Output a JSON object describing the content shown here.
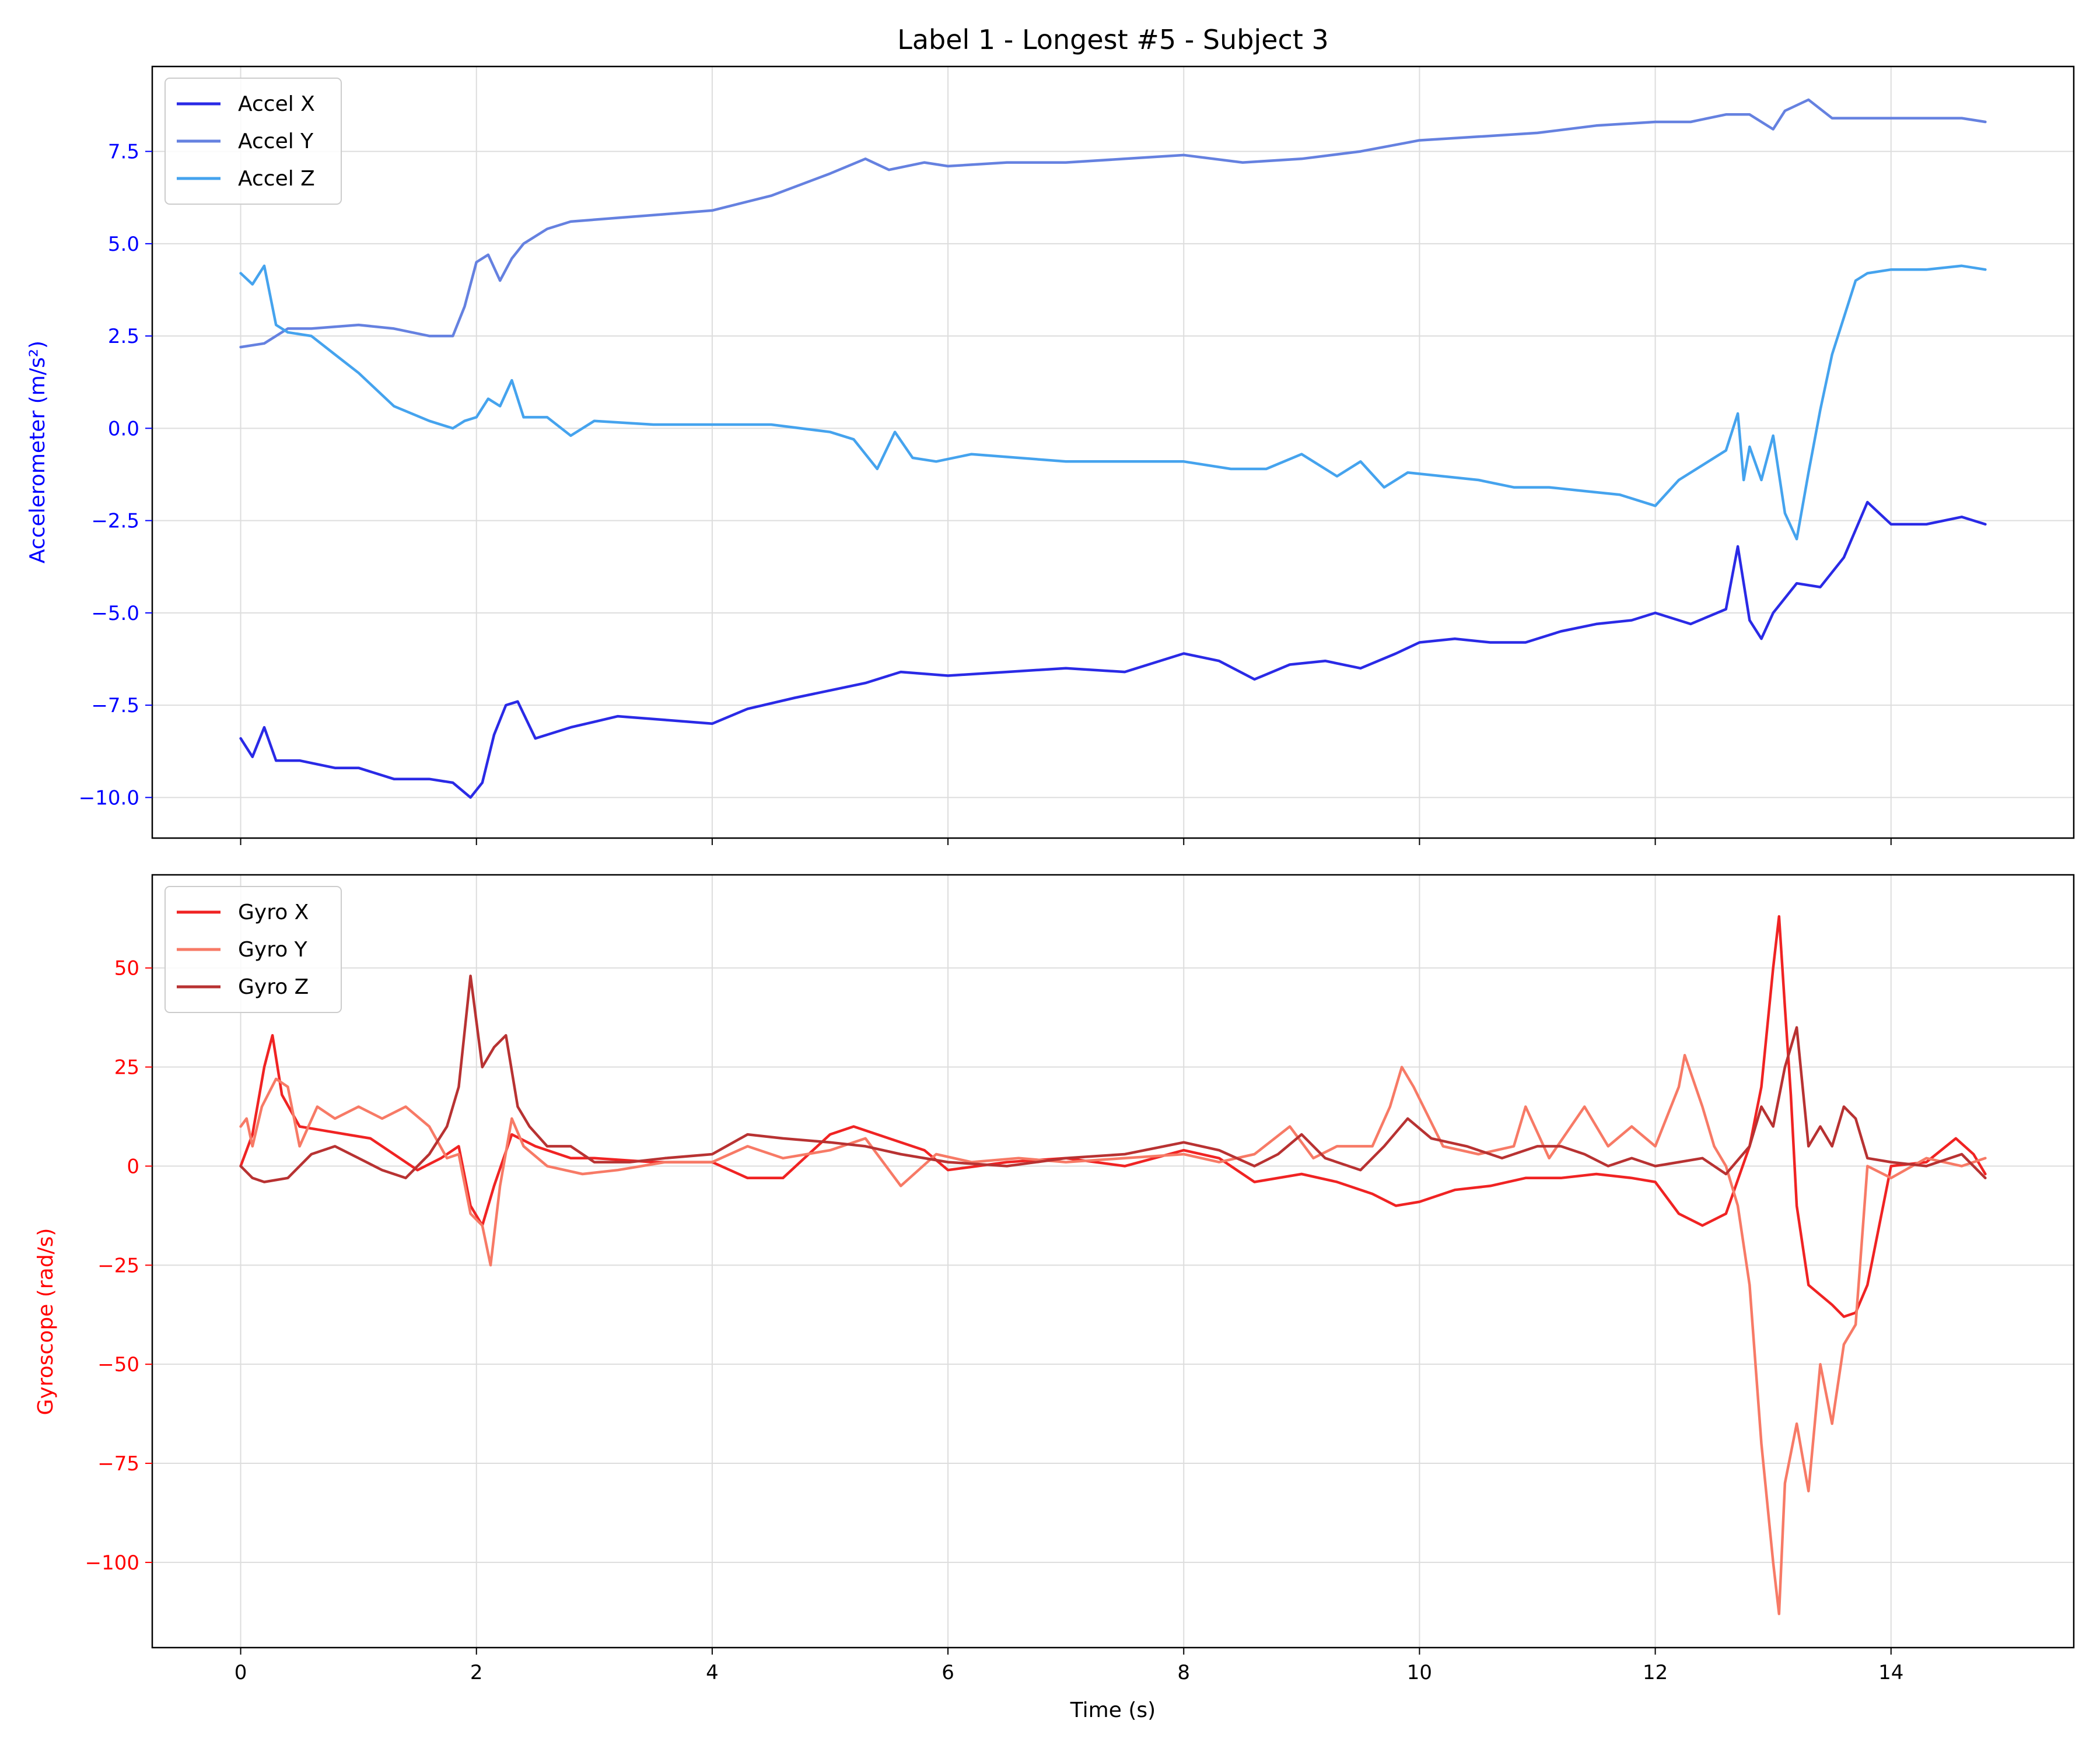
{
  "figure": {
    "title": "Label 1 - Longest #5 - Subject 3"
  },
  "colors": {
    "accel_x": "#2a2ae6",
    "accel_y": "#6581e0",
    "accel_z": "#45a3ee",
    "gyro_x": "#f02323",
    "gyro_y": "#f77a66",
    "gyro_z": "#b83232",
    "accel_axis_text": "#0000ff",
    "gyro_axis_text": "#ff0000",
    "grid": "#dddddd"
  },
  "chart_data": [
    {
      "type": "line",
      "title": "Label 1 - Longest #5 - Subject 3",
      "ylabel": "Accelerometer (m/s²)",
      "xlabel": "",
      "xlim": [
        -0.75,
        15.55
      ],
      "ylim": [
        -11.1,
        9.8
      ],
      "grid": true,
      "legend_position": "top-left",
      "xticks": [
        0,
        2,
        4,
        6,
        8,
        10,
        12,
        14
      ],
      "yticks": [
        -10.0,
        -7.5,
        -5.0,
        -2.5,
        0.0,
        2.5,
        5.0,
        7.5
      ],
      "ytick_labels": [
        "−10.0",
        "−7.5",
        "−5.0",
        "−2.5",
        "0.0",
        "2.5",
        "5.0",
        "7.5"
      ],
      "series": [
        {
          "name": "Accel X",
          "x": [
            0,
            0.1,
            0.2,
            0.3,
            0.5,
            0.8,
            1.0,
            1.3,
            1.6,
            1.8,
            1.95,
            2.05,
            2.15,
            2.25,
            2.35,
            2.5,
            2.8,
            3.2,
            3.6,
            4.0,
            4.3,
            4.7,
            5.0,
            5.3,
            5.6,
            6.0,
            6.5,
            7.0,
            7.5,
            8.0,
            8.3,
            8.6,
            8.9,
            9.2,
            9.5,
            9.8,
            10.0,
            10.3,
            10.6,
            10.9,
            11.2,
            11.5,
            11.8,
            12.0,
            12.3,
            12.6,
            12.7,
            12.8,
            12.9,
            13.0,
            13.2,
            13.4,
            13.6,
            13.8,
            14.0,
            14.3,
            14.6,
            14.8
          ],
          "values": [
            -8.4,
            -8.9,
            -8.1,
            -9.0,
            -9.0,
            -9.2,
            -9.2,
            -9.5,
            -9.5,
            -9.6,
            -10.0,
            -9.6,
            -8.3,
            -7.5,
            -7.4,
            -8.4,
            -8.1,
            -7.8,
            -7.9,
            -8.0,
            -7.6,
            -7.3,
            -7.1,
            -6.9,
            -6.6,
            -6.7,
            -6.6,
            -6.5,
            -6.6,
            -6.1,
            -6.3,
            -6.8,
            -6.4,
            -6.3,
            -6.5,
            -6.1,
            -5.8,
            -5.7,
            -5.8,
            -5.8,
            -5.5,
            -5.3,
            -5.2,
            -5.0,
            -5.3,
            -4.9,
            -3.2,
            -5.2,
            -5.7,
            -5.0,
            -4.2,
            -4.3,
            -3.5,
            -2.0,
            -2.6,
            -2.6,
            -2.4,
            -2.6
          ]
        },
        {
          "name": "Accel Y",
          "x": [
            0,
            0.2,
            0.4,
            0.6,
            1.0,
            1.3,
            1.6,
            1.8,
            1.9,
            2.0,
            2.1,
            2.2,
            2.3,
            2.4,
            2.6,
            2.8,
            3.2,
            3.6,
            4.0,
            4.5,
            5.0,
            5.3,
            5.5,
            5.8,
            6.0,
            6.5,
            7.0,
            7.5,
            8.0,
            8.5,
            9.0,
            9.5,
            10.0,
            10.5,
            11.0,
            11.5,
            12.0,
            12.3,
            12.6,
            12.8,
            13.0,
            13.1,
            13.3,
            13.5,
            13.8,
            14.0,
            14.3,
            14.6,
            14.8
          ],
          "values": [
            2.2,
            2.3,
            2.7,
            2.7,
            2.8,
            2.7,
            2.5,
            2.5,
            3.3,
            4.5,
            4.7,
            4.0,
            4.6,
            5.0,
            5.4,
            5.6,
            5.7,
            5.8,
            5.9,
            6.3,
            6.9,
            7.3,
            7.0,
            7.2,
            7.1,
            7.2,
            7.2,
            7.3,
            7.4,
            7.2,
            7.3,
            7.5,
            7.8,
            7.9,
            8.0,
            8.2,
            8.3,
            8.3,
            8.5,
            8.5,
            8.1,
            8.6,
            8.9,
            8.4,
            8.4,
            8.4,
            8.4,
            8.4,
            8.3
          ]
        },
        {
          "name": "Accel Z",
          "x": [
            0,
            0.1,
            0.2,
            0.3,
            0.4,
            0.6,
            0.8,
            1.0,
            1.3,
            1.6,
            1.8,
            1.9,
            2.0,
            2.1,
            2.2,
            2.3,
            2.4,
            2.6,
            2.8,
            3.0,
            3.5,
            4.0,
            4.5,
            5.0,
            5.2,
            5.4,
            5.55,
            5.7,
            5.9,
            6.2,
            6.6,
            7.0,
            7.5,
            8.0,
            8.4,
            8.7,
            9.0,
            9.3,
            9.5,
            9.7,
            9.9,
            10.2,
            10.5,
            10.8,
            11.1,
            11.4,
            11.7,
            12.0,
            12.2,
            12.4,
            12.6,
            12.7,
            12.75,
            12.8,
            12.9,
            13.0,
            13.1,
            13.2,
            13.3,
            13.4,
            13.5,
            13.6,
            13.7,
            13.8,
            14.0,
            14.3,
            14.6,
            14.8
          ],
          "values": [
            4.2,
            3.9,
            4.4,
            2.8,
            2.6,
            2.5,
            2.0,
            1.5,
            0.6,
            0.2,
            0.0,
            0.2,
            0.3,
            0.8,
            0.6,
            1.3,
            0.3,
            0.3,
            -0.2,
            0.2,
            0.1,
            0.1,
            0.1,
            -0.1,
            -0.3,
            -1.1,
            -0.1,
            -0.8,
            -0.9,
            -0.7,
            -0.8,
            -0.9,
            -0.9,
            -0.9,
            -1.1,
            -1.1,
            -0.7,
            -1.3,
            -0.9,
            -1.6,
            -1.2,
            -1.3,
            -1.4,
            -1.6,
            -1.6,
            -1.7,
            -1.8,
            -2.1,
            -1.4,
            -1.0,
            -0.6,
            0.4,
            -1.4,
            -0.5,
            -1.4,
            -0.2,
            -2.3,
            -3.0,
            -1.2,
            0.5,
            2.0,
            3.0,
            4.0,
            4.2,
            4.3,
            4.3,
            4.4,
            4.3
          ]
        }
      ]
    },
    {
      "type": "line",
      "title": "",
      "ylabel": "Gyroscope (rad/s)",
      "xlabel": "Time (s)",
      "xlim": [
        -0.75,
        15.55
      ],
      "ylim": [
        -121.5,
        73.5
      ],
      "grid": true,
      "legend_position": "top-left",
      "xticks": [
        0,
        2,
        4,
        6,
        8,
        10,
        12,
        14
      ],
      "yticks": [
        -100,
        -75,
        -50,
        -25,
        0,
        25,
        50
      ],
      "ytick_labels": [
        "−100",
        "−75",
        "−50",
        "−25",
        "0",
        "25",
        "50"
      ],
      "series": [
        {
          "name": "Gyro X",
          "x": [
            0,
            0.1,
            0.2,
            0.27,
            0.35,
            0.5,
            0.7,
            0.9,
            1.1,
            1.3,
            1.5,
            1.7,
            1.85,
            1.95,
            2.05,
            2.15,
            2.3,
            2.5,
            2.8,
            3.0,
            3.5,
            4.0,
            4.3,
            4.6,
            5.0,
            5.2,
            5.5,
            5.8,
            6.0,
            6.5,
            7.0,
            7.5,
            8.0,
            8.3,
            8.6,
            9.0,
            9.3,
            9.6,
            9.8,
            10.0,
            10.3,
            10.6,
            10.9,
            11.2,
            11.5,
            11.8,
            12.0,
            12.2,
            12.4,
            12.6,
            12.8,
            12.9,
            13.0,
            13.05,
            13.1,
            13.15,
            13.2,
            13.3,
            13.5,
            13.6,
            13.7,
            13.8,
            14.0,
            14.3,
            14.55,
            14.7,
            14.8
          ],
          "values": [
            0,
            8,
            25,
            33,
            18,
            10,
            9,
            8,
            7,
            3,
            -1,
            2,
            5,
            -10,
            -15,
            -5,
            8,
            5,
            2,
            2,
            1,
            1,
            -3,
            -3,
            8,
            10,
            7,
            4,
            -1,
            1,
            2,
            0,
            4,
            2,
            -4,
            -2,
            -4,
            -7,
            -10,
            -9,
            -6,
            -5,
            -3,
            -3,
            -2,
            -3,
            -4,
            -12,
            -15,
            -12,
            5,
            20,
            50,
            63,
            40,
            18,
            -10,
            -30,
            -35,
            -38,
            -37,
            -30,
            0,
            1,
            7,
            3,
            -2
          ]
        },
        {
          "name": "Gyro Y",
          "x": [
            0,
            0.05,
            0.1,
            0.18,
            0.3,
            0.4,
            0.5,
            0.65,
            0.8,
            1.0,
            1.2,
            1.4,
            1.6,
            1.75,
            1.85,
            1.95,
            2.05,
            2.12,
            2.2,
            2.3,
            2.4,
            2.6,
            2.9,
            3.2,
            3.6,
            4.0,
            4.3,
            4.6,
            5.0,
            5.3,
            5.6,
            5.9,
            6.2,
            6.6,
            7.0,
            7.5,
            8.0,
            8.3,
            8.6,
            8.9,
            9.1,
            9.3,
            9.6,
            9.75,
            9.85,
            9.95,
            10.2,
            10.5,
            10.8,
            10.9,
            11.1,
            11.4,
            11.6,
            11.8,
            12.0,
            12.2,
            12.25,
            12.4,
            12.5,
            12.6,
            12.7,
            12.8,
            12.9,
            13.0,
            13.05,
            13.1,
            13.2,
            13.3,
            13.4,
            13.5,
            13.6,
            13.7,
            13.8,
            14.0,
            14.3,
            14.6,
            14.8
          ],
          "values": [
            10,
            12,
            5,
            15,
            22,
            20,
            5,
            15,
            12,
            15,
            12,
            15,
            10,
            2,
            3,
            -12,
            -15,
            -25,
            -5,
            12,
            5,
            0,
            -2,
            -1,
            1,
            1,
            5,
            2,
            4,
            7,
            -5,
            3,
            1,
            2,
            1,
            2,
            3,
            1,
            3,
            10,
            2,
            5,
            5,
            15,
            25,
            20,
            5,
            3,
            5,
            15,
            2,
            15,
            5,
            10,
            5,
            20,
            28,
            15,
            5,
            0,
            -10,
            -30,
            -70,
            -100,
            -113,
            -80,
            -65,
            -82,
            -50,
            -65,
            -45,
            -40,
            0,
            -3,
            2,
            0,
            2
          ]
        },
        {
          "name": "Gyro Z",
          "x": [
            0,
            0.1,
            0.2,
            0.4,
            0.6,
            0.8,
            1.0,
            1.2,
            1.4,
            1.6,
            1.75,
            1.85,
            1.95,
            2.05,
            2.15,
            2.25,
            2.35,
            2.45,
            2.6,
            2.8,
            3.0,
            3.3,
            3.6,
            4.0,
            4.3,
            4.6,
            5.0,
            5.3,
            5.6,
            6.0,
            6.5,
            7.0,
            7.5,
            8.0,
            8.3,
            8.6,
            8.8,
            9.0,
            9.2,
            9.5,
            9.7,
            9.9,
            10.1,
            10.4,
            10.7,
            11.0,
            11.2,
            11.4,
            11.6,
            11.8,
            12.0,
            12.2,
            12.4,
            12.6,
            12.8,
            12.9,
            13.0,
            13.1,
            13.2,
            13.3,
            13.4,
            13.5,
            13.6,
            13.7,
            13.8,
            14.0,
            14.3,
            14.6,
            14.8
          ],
          "values": [
            0,
            -3,
            -4,
            -3,
            3,
            5,
            2,
            -1,
            -3,
            3,
            10,
            20,
            48,
            25,
            30,
            33,
            15,
            10,
            5,
            5,
            1,
            1,
            2,
            3,
            8,
            7,
            6,
            5,
            3,
            1,
            0,
            2,
            3,
            6,
            4,
            0,
            3,
            8,
            2,
            -1,
            5,
            12,
            7,
            5,
            2,
            5,
            5,
            3,
            0,
            2,
            0,
            1,
            2,
            -2,
            5,
            15,
            10,
            25,
            35,
            5,
            10,
            5,
            15,
            12,
            2,
            1,
            0,
            3,
            -3
          ]
        }
      ]
    }
  ]
}
